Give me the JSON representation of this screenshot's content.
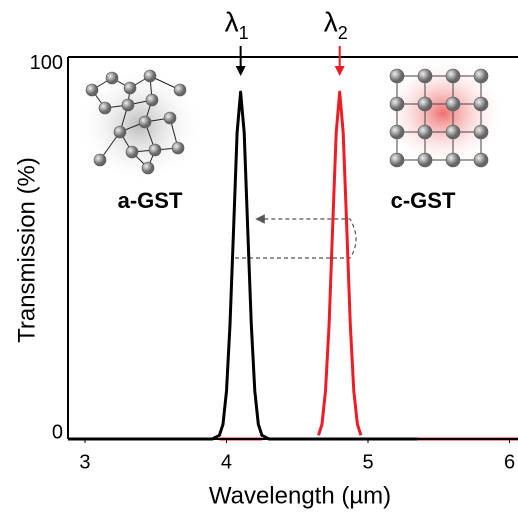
{
  "chart_data": {
    "type": "line",
    "xlabel": "Wavelength (µm)",
    "ylabel": "Transmission (%)",
    "x": [
      2.88,
      3.9,
      3.95,
      3.975,
      4.0,
      4.025,
      4.05,
      4.075,
      4.1,
      4.125,
      4.15,
      4.175,
      4.2,
      4.225,
      4.25,
      4.3,
      4.6,
      4.65,
      4.675,
      4.7,
      4.725,
      4.75,
      4.775,
      4.8,
      4.825,
      4.85,
      4.875,
      4.9,
      4.925,
      4.95,
      5.0,
      5.35,
      6.06
    ],
    "series": [
      {
        "name": "a-GST",
        "color": "#000000",
        "values": [
          0,
          0,
          1,
          4,
          13,
          31,
          57,
          83,
          94,
          83,
          57,
          31,
          13,
          4,
          1,
          0,
          0,
          0,
          0,
          0,
          0,
          0,
          0,
          0,
          0,
          0,
          0,
          0,
          0,
          0,
          0,
          0,
          null
        ]
      },
      {
        "name": "c-GST",
        "color": "#ee1c25",
        "values": [
          null,
          null,
          0,
          0,
          0,
          0,
          0,
          0,
          0,
          0,
          0,
          0,
          0,
          0,
          0,
          null,
          null,
          1,
          4,
          13,
          31,
          57,
          83,
          94,
          83,
          57,
          31,
          13,
          4,
          1,
          null,
          0,
          0
        ]
      }
    ],
    "annotations": [
      {
        "text": "λ",
        "sub": "1",
        "x": 4.1,
        "color": "#000000"
      },
      {
        "text": "λ",
        "sub": "2",
        "x": 4.8,
        "color": "#ee1c25"
      }
    ],
    "xlim": [
      2.88,
      6.06
    ],
    "xticks": [
      3,
      4,
      5,
      6
    ],
    "ylim": [
      0,
      103.5
    ],
    "yticks": [
      0,
      100
    ]
  }
}
